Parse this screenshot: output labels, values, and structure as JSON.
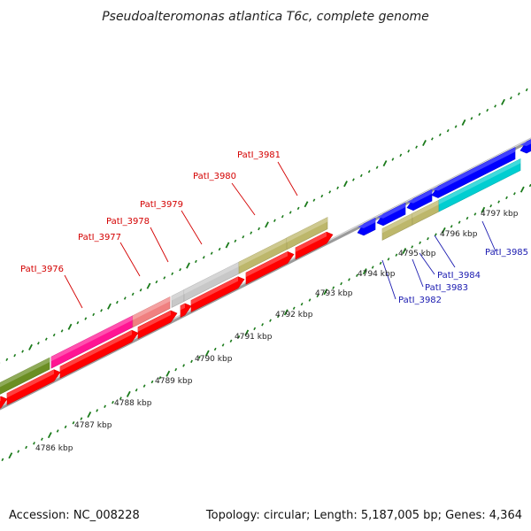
{
  "header": {
    "title": "Pseudoalteromonas atlantica T6c, complete genome"
  },
  "footer": {
    "accession": "Accession: NC_008228",
    "summary": "Topology: circular; Length: 5,187,005 bp; Genes: 4,364"
  },
  "scale_labels": [
    "4786 kbp",
    "4787 kbp",
    "4788 kbp",
    "4789 kbp",
    "4790 kbp",
    "4791 kbp",
    "4792 kbp",
    "4793 kbp",
    "4794 kbp",
    "4795 kbp",
    "4796 kbp",
    "4797 kbp"
  ],
  "gene_labels_red": [
    "PatI_3976",
    "PatI_3977",
    "PatI_3978",
    "PatI_3979",
    "PatI_3980",
    "PatI_3981"
  ],
  "gene_labels_blue": [
    "PatI_3982",
    "PatI_3983",
    "PatI_3984",
    "PatI_3985"
  ],
  "colors": {
    "red": "#ff0000",
    "olive": "#6b8e23",
    "magenta": "#ff1493",
    "salmon": "#f08080",
    "gray": "#c8c8c8",
    "khaki": "#bdb76b",
    "blue": "#0000ff",
    "cyan": "#00ced1",
    "tick_green": "#1a7a1a",
    "backbone": "#808080",
    "label_red": "#d40000",
    "label_blue": "#1a1ab0"
  }
}
